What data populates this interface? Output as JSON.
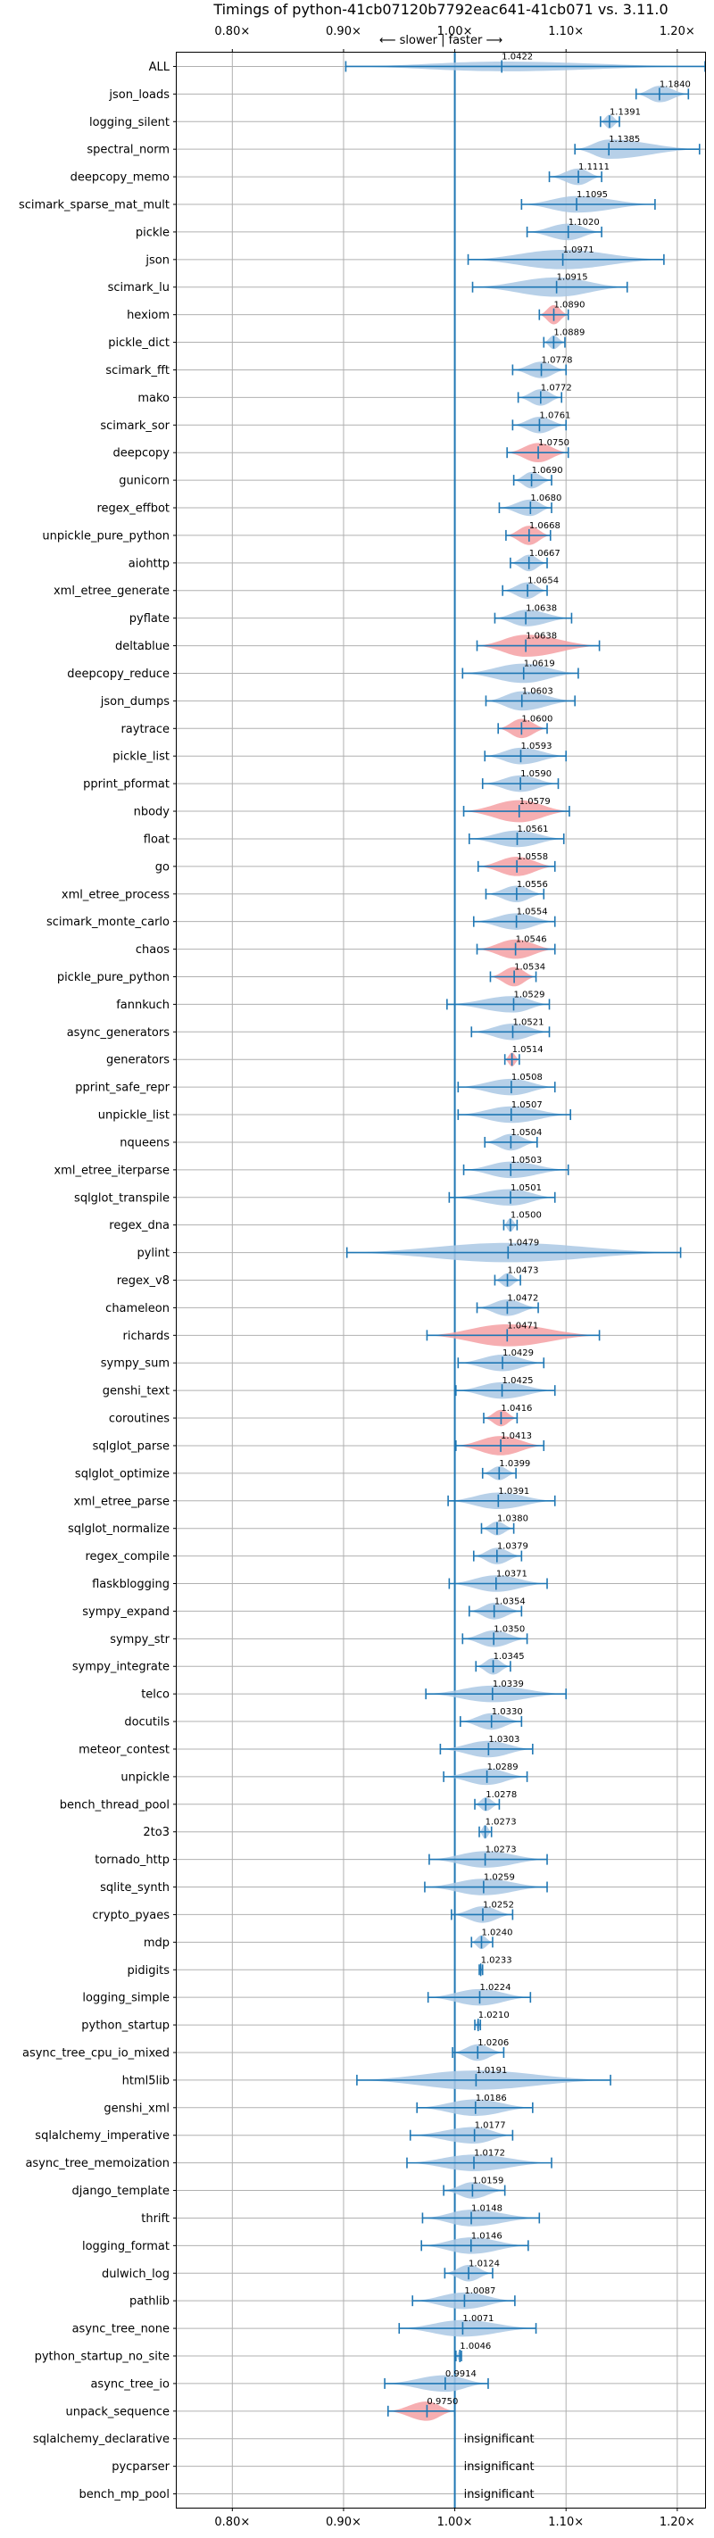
{
  "chart_data": {
    "type": "violin",
    "title": "Timings of python-41cb07120b7792eac641-41cb071 vs. 3.11.0",
    "subtitle": "⟵ slower | faster ⟶",
    "xlabel": "",
    "ylabel": "",
    "xlim": [
      0.75,
      1.225
    ],
    "xticks": [
      0.8,
      0.9,
      1.0,
      1.1,
      1.2
    ],
    "xtick_labels": [
      "0.80×",
      "0.90×",
      "1.00×",
      "1.10×",
      "1.20×"
    ],
    "reference_line": 1.0,
    "grid": true,
    "colors": {
      "faster": "#aac8e4",
      "slower": "#f4a0a3",
      "line": "#1f77b4",
      "grid": "#b0b0b0"
    },
    "benchmarks": [
      {
        "name": "ALL",
        "value": 1.0422,
        "label": "1.0422",
        "min": 0.902,
        "max": 1.225,
        "width": 0.35,
        "color": "blue"
      },
      {
        "name": "json_loads",
        "value": 1.184,
        "label": "1.1840",
        "min": 1.163,
        "max": 1.21,
        "width": 0.6,
        "color": "blue"
      },
      {
        "name": "logging_silent",
        "value": 1.1391,
        "label": "1.1391",
        "min": 1.131,
        "max": 1.148,
        "width": 0.5,
        "color": "blue"
      },
      {
        "name": "spectral_norm",
        "value": 1.1385,
        "label": "1.1385",
        "min": 1.108,
        "max": 1.22,
        "width": 0.7,
        "color": "blue"
      },
      {
        "name": "deepcopy_memo",
        "value": 1.1111,
        "label": "1.1111",
        "min": 1.085,
        "max": 1.132,
        "width": 0.6,
        "color": "blue"
      },
      {
        "name": "scimark_sparse_mat_mult",
        "value": 1.1095,
        "label": "1.1095",
        "min": 1.06,
        "max": 1.18,
        "width": 0.6,
        "color": "blue"
      },
      {
        "name": "pickle",
        "value": 1.102,
        "label": "1.1020",
        "min": 1.065,
        "max": 1.132,
        "width": 0.6,
        "color": "blue"
      },
      {
        "name": "json",
        "value": 1.0971,
        "label": "1.0971",
        "min": 1.012,
        "max": 1.188,
        "width": 0.7,
        "color": "blue"
      },
      {
        "name": "scimark_lu",
        "value": 1.0915,
        "label": "1.0915",
        "min": 1.016,
        "max": 1.155,
        "width": 0.7,
        "color": "blue"
      },
      {
        "name": "hexiom",
        "value": 1.089,
        "label": "1.0890",
        "min": 1.076,
        "max": 1.102,
        "width": 0.7,
        "color": "red"
      },
      {
        "name": "pickle_dict",
        "value": 1.0889,
        "label": "1.0889",
        "min": 1.08,
        "max": 1.099,
        "width": 0.5,
        "color": "blue"
      },
      {
        "name": "scimark_fft",
        "value": 1.0778,
        "label": "1.0778",
        "min": 1.052,
        "max": 1.1,
        "width": 0.6,
        "color": "blue"
      },
      {
        "name": "mako",
        "value": 1.0772,
        "label": "1.0772",
        "min": 1.057,
        "max": 1.096,
        "width": 0.6,
        "color": "blue"
      },
      {
        "name": "scimark_sor",
        "value": 1.0761,
        "label": "1.0761",
        "min": 1.052,
        "max": 1.1,
        "width": 0.6,
        "color": "blue"
      },
      {
        "name": "deepcopy",
        "value": 1.075,
        "label": "1.0750",
        "min": 1.047,
        "max": 1.102,
        "width": 0.7,
        "color": "red"
      },
      {
        "name": "gunicorn",
        "value": 1.069,
        "label": "1.0690",
        "min": 1.053,
        "max": 1.087,
        "width": 0.6,
        "color": "blue"
      },
      {
        "name": "regex_effbot",
        "value": 1.068,
        "label": "1.0680",
        "min": 1.04,
        "max": 1.087,
        "width": 0.6,
        "color": "blue"
      },
      {
        "name": "unpickle_pure_python",
        "value": 1.0668,
        "label": "1.0668",
        "min": 1.046,
        "max": 1.086,
        "width": 0.7,
        "color": "red"
      },
      {
        "name": "aiohttp",
        "value": 1.0667,
        "label": "1.0667",
        "min": 1.05,
        "max": 1.083,
        "width": 0.6,
        "color": "blue"
      },
      {
        "name": "xml_etree_generate",
        "value": 1.0654,
        "label": "1.0654",
        "min": 1.043,
        "max": 1.083,
        "width": 0.6,
        "color": "blue"
      },
      {
        "name": "pyflate",
        "value": 1.0638,
        "label": "1.0638",
        "min": 1.036,
        "max": 1.105,
        "width": 0.6,
        "color": "blue"
      },
      {
        "name": "deltablue",
        "value": 1.0638,
        "label": "1.0638",
        "min": 1.02,
        "max": 1.13,
        "width": 0.8,
        "color": "red"
      },
      {
        "name": "deepcopy_reduce",
        "value": 1.0619,
        "label": "1.0619",
        "min": 1.007,
        "max": 1.111,
        "width": 0.7,
        "color": "blue"
      },
      {
        "name": "json_dumps",
        "value": 1.0603,
        "label": "1.0603",
        "min": 1.028,
        "max": 1.108,
        "width": 0.7,
        "color": "blue"
      },
      {
        "name": "raytrace",
        "value": 1.06,
        "label": "1.0600",
        "min": 1.039,
        "max": 1.083,
        "width": 0.7,
        "color": "red"
      },
      {
        "name": "pickle_list",
        "value": 1.0593,
        "label": "1.0593",
        "min": 1.027,
        "max": 1.1,
        "width": 0.6,
        "color": "blue"
      },
      {
        "name": "pprint_pformat",
        "value": 1.059,
        "label": "1.0590",
        "min": 1.025,
        "max": 1.093,
        "width": 0.6,
        "color": "blue"
      },
      {
        "name": "nbody",
        "value": 1.0579,
        "label": "1.0579",
        "min": 1.008,
        "max": 1.103,
        "width": 0.8,
        "color": "red"
      },
      {
        "name": "float",
        "value": 1.0561,
        "label": "1.0561",
        "min": 1.013,
        "max": 1.098,
        "width": 0.6,
        "color": "blue"
      },
      {
        "name": "go",
        "value": 1.0558,
        "label": "1.0558",
        "min": 1.021,
        "max": 1.09,
        "width": 0.7,
        "color": "red"
      },
      {
        "name": "xml_etree_process",
        "value": 1.0556,
        "label": "1.0556",
        "min": 1.028,
        "max": 1.08,
        "width": 0.6,
        "color": "blue"
      },
      {
        "name": "scimark_monte_carlo",
        "value": 1.0554,
        "label": "1.0554",
        "min": 1.017,
        "max": 1.09,
        "width": 0.6,
        "color": "blue"
      },
      {
        "name": "chaos",
        "value": 1.0546,
        "label": "1.0546",
        "min": 1.02,
        "max": 1.09,
        "width": 0.7,
        "color": "red"
      },
      {
        "name": "pickle_pure_python",
        "value": 1.0534,
        "label": "1.0534",
        "min": 1.032,
        "max": 1.073,
        "width": 0.7,
        "color": "red"
      },
      {
        "name": "fannkuch",
        "value": 1.0529,
        "label": "1.0529",
        "min": 0.993,
        "max": 1.085,
        "width": 0.6,
        "color": "blue"
      },
      {
        "name": "async_generators",
        "value": 1.0521,
        "label": "1.0521",
        "min": 1.015,
        "max": 1.085,
        "width": 0.6,
        "color": "blue"
      },
      {
        "name": "generators",
        "value": 1.0514,
        "label": "1.0514",
        "min": 1.045,
        "max": 1.058,
        "width": 0.5,
        "color": "red"
      },
      {
        "name": "pprint_safe_repr",
        "value": 1.0508,
        "label": "1.0508",
        "min": 1.003,
        "max": 1.09,
        "width": 0.6,
        "color": "blue"
      },
      {
        "name": "unpickle_list",
        "value": 1.0507,
        "label": "1.0507",
        "min": 1.003,
        "max": 1.104,
        "width": 0.6,
        "color": "blue"
      },
      {
        "name": "nqueens",
        "value": 1.0504,
        "label": "1.0504",
        "min": 1.027,
        "max": 1.074,
        "width": 0.6,
        "color": "blue"
      },
      {
        "name": "xml_etree_iterparse",
        "value": 1.0503,
        "label": "1.0503",
        "min": 1.008,
        "max": 1.102,
        "width": 0.6,
        "color": "blue"
      },
      {
        "name": "sqlglot_transpile",
        "value": 1.0501,
        "label": "1.0501",
        "min": 0.995,
        "max": 1.09,
        "width": 0.6,
        "color": "blue"
      },
      {
        "name": "regex_dna",
        "value": 1.05,
        "label": "1.0500",
        "min": 1.044,
        "max": 1.056,
        "width": 0.5,
        "color": "blue"
      },
      {
        "name": "pylint",
        "value": 1.0479,
        "label": "1.0479",
        "min": 0.903,
        "max": 1.203,
        "width": 0.7,
        "color": "blue"
      },
      {
        "name": "regex_v8",
        "value": 1.0473,
        "label": "1.0473",
        "min": 1.036,
        "max": 1.059,
        "width": 0.5,
        "color": "blue"
      },
      {
        "name": "chameleon",
        "value": 1.0472,
        "label": "1.0472",
        "min": 1.02,
        "max": 1.075,
        "width": 0.6,
        "color": "blue"
      },
      {
        "name": "richards",
        "value": 1.0471,
        "label": "1.0471",
        "min": 0.975,
        "max": 1.13,
        "width": 0.8,
        "color": "red"
      },
      {
        "name": "sympy_sum",
        "value": 1.0429,
        "label": "1.0429",
        "min": 1.003,
        "max": 1.08,
        "width": 0.6,
        "color": "blue"
      },
      {
        "name": "genshi_text",
        "value": 1.0425,
        "label": "1.0425",
        "min": 1.001,
        "max": 1.09,
        "width": 0.6,
        "color": "blue"
      },
      {
        "name": "coroutines",
        "value": 1.0416,
        "label": "1.0416",
        "min": 1.026,
        "max": 1.056,
        "width": 0.6,
        "color": "red"
      },
      {
        "name": "sqlglot_parse",
        "value": 1.0413,
        "label": "1.0413",
        "min": 1.001,
        "max": 1.08,
        "width": 0.7,
        "color": "red"
      },
      {
        "name": "sqlglot_optimize",
        "value": 1.0399,
        "label": "1.0399",
        "min": 1.025,
        "max": 1.055,
        "width": 0.5,
        "color": "blue"
      },
      {
        "name": "xml_etree_parse",
        "value": 1.0391,
        "label": "1.0391",
        "min": 0.994,
        "max": 1.09,
        "width": 0.6,
        "color": "blue"
      },
      {
        "name": "sqlglot_normalize",
        "value": 1.038,
        "label": "1.0380",
        "min": 1.024,
        "max": 1.053,
        "width": 0.5,
        "color": "blue"
      },
      {
        "name": "regex_compile",
        "value": 1.0379,
        "label": "1.0379",
        "min": 1.017,
        "max": 1.06,
        "width": 0.6,
        "color": "blue"
      },
      {
        "name": "flaskblogging",
        "value": 1.0371,
        "label": "1.0371",
        "min": 0.995,
        "max": 1.083,
        "width": 0.6,
        "color": "blue"
      },
      {
        "name": "sympy_expand",
        "value": 1.0354,
        "label": "1.0354",
        "min": 1.013,
        "max": 1.06,
        "width": 0.6,
        "color": "blue"
      },
      {
        "name": "sympy_str",
        "value": 1.035,
        "label": "1.0350",
        "min": 1.007,
        "max": 1.065,
        "width": 0.6,
        "color": "blue"
      },
      {
        "name": "sympy_integrate",
        "value": 1.0345,
        "label": "1.0345",
        "min": 1.019,
        "max": 1.05,
        "width": 0.6,
        "color": "blue"
      },
      {
        "name": "telco",
        "value": 1.0339,
        "label": "1.0339",
        "min": 0.974,
        "max": 1.1,
        "width": 0.6,
        "color": "blue"
      },
      {
        "name": "docutils",
        "value": 1.033,
        "label": "1.0330",
        "min": 1.005,
        "max": 1.06,
        "width": 0.6,
        "color": "blue"
      },
      {
        "name": "meteor_contest",
        "value": 1.0303,
        "label": "1.0303",
        "min": 0.987,
        "max": 1.07,
        "width": 0.6,
        "color": "blue"
      },
      {
        "name": "unpickle",
        "value": 1.0289,
        "label": "1.0289",
        "min": 0.99,
        "max": 1.065,
        "width": 0.6,
        "color": "blue"
      },
      {
        "name": "bench_thread_pool",
        "value": 1.0278,
        "label": "1.0278",
        "min": 1.018,
        "max": 1.04,
        "width": 0.5,
        "color": "blue"
      },
      {
        "name": "2to3",
        "value": 1.0273,
        "label": "1.0273",
        "min": 1.022,
        "max": 1.033,
        "width": 0.5,
        "color": "blue"
      },
      {
        "name": "tornado_http",
        "value": 1.0273,
        "label": "1.0273",
        "min": 0.977,
        "max": 1.083,
        "width": 0.6,
        "color": "blue"
      },
      {
        "name": "sqlite_synth",
        "value": 1.0259,
        "label": "1.0259",
        "min": 0.973,
        "max": 1.083,
        "width": 0.6,
        "color": "blue"
      },
      {
        "name": "crypto_pyaes",
        "value": 1.0252,
        "label": "1.0252",
        "min": 0.997,
        "max": 1.052,
        "width": 0.6,
        "color": "blue"
      },
      {
        "name": "mdp",
        "value": 1.024,
        "label": "1.0240",
        "min": 1.015,
        "max": 1.034,
        "width": 0.5,
        "color": "blue"
      },
      {
        "name": "pidigits",
        "value": 1.0233,
        "label": "1.0233",
        "min": 1.022,
        "max": 1.025,
        "width": 0.5,
        "color": "blue"
      },
      {
        "name": "logging_simple",
        "value": 1.0224,
        "label": "1.0224",
        "min": 0.976,
        "max": 1.068,
        "width": 0.6,
        "color": "blue"
      },
      {
        "name": "python_startup",
        "value": 1.021,
        "label": "1.0210",
        "min": 1.018,
        "max": 1.023,
        "width": 0.4,
        "color": "blue"
      },
      {
        "name": "async_tree_cpu_io_mixed",
        "value": 1.0206,
        "label": "1.0206",
        "min": 0.998,
        "max": 1.044,
        "width": 0.6,
        "color": "blue"
      },
      {
        "name": "html5lib",
        "value": 1.0191,
        "label": "1.0191",
        "min": 0.912,
        "max": 1.14,
        "width": 0.7,
        "color": "blue"
      },
      {
        "name": "genshi_xml",
        "value": 1.0186,
        "label": "1.0186",
        "min": 0.966,
        "max": 1.07,
        "width": 0.6,
        "color": "blue"
      },
      {
        "name": "sqlalchemy_imperative",
        "value": 1.0177,
        "label": "1.0177",
        "min": 0.96,
        "max": 1.052,
        "width": 0.6,
        "color": "blue"
      },
      {
        "name": "async_tree_memoization",
        "value": 1.0172,
        "label": "1.0172",
        "min": 0.957,
        "max": 1.087,
        "width": 0.6,
        "color": "blue"
      },
      {
        "name": "django_template",
        "value": 1.0159,
        "label": "1.0159",
        "min": 0.99,
        "max": 1.045,
        "width": 0.6,
        "color": "blue"
      },
      {
        "name": "thrift",
        "value": 1.0148,
        "label": "1.0148",
        "min": 0.971,
        "max": 1.076,
        "width": 0.6,
        "color": "blue"
      },
      {
        "name": "logging_format",
        "value": 1.0146,
        "label": "1.0146",
        "min": 0.97,
        "max": 1.066,
        "width": 0.6,
        "color": "blue"
      },
      {
        "name": "dulwich_log",
        "value": 1.0124,
        "label": "1.0124",
        "min": 0.991,
        "max": 1.034,
        "width": 0.6,
        "color": "blue"
      },
      {
        "name": "pathlib",
        "value": 1.0087,
        "label": "1.0087",
        "min": 0.962,
        "max": 1.054,
        "width": 0.6,
        "color": "blue"
      },
      {
        "name": "async_tree_none",
        "value": 1.0071,
        "label": "1.0071",
        "min": 0.95,
        "max": 1.073,
        "width": 0.6,
        "color": "blue"
      },
      {
        "name": "python_startup_no_site",
        "value": 1.0046,
        "label": "1.0046",
        "min": 1.001,
        "max": 1.006,
        "width": 0.4,
        "color": "blue"
      },
      {
        "name": "async_tree_io",
        "value": 0.9914,
        "label": "0.9914",
        "min": 0.937,
        "max": 1.03,
        "width": 0.6,
        "color": "blue"
      },
      {
        "name": "unpack_sequence",
        "value": 0.975,
        "label": "0.9750",
        "min": 0.94,
        "max": 1.0,
        "width": 0.7,
        "color": "red"
      },
      {
        "name": "sqlalchemy_declarative",
        "value": null,
        "label": "insignificant",
        "color": "none"
      },
      {
        "name": "pycparser",
        "value": null,
        "label": "insignificant",
        "color": "none"
      },
      {
        "name": "bench_mp_pool",
        "value": null,
        "label": "insignificant",
        "color": "none"
      }
    ]
  }
}
